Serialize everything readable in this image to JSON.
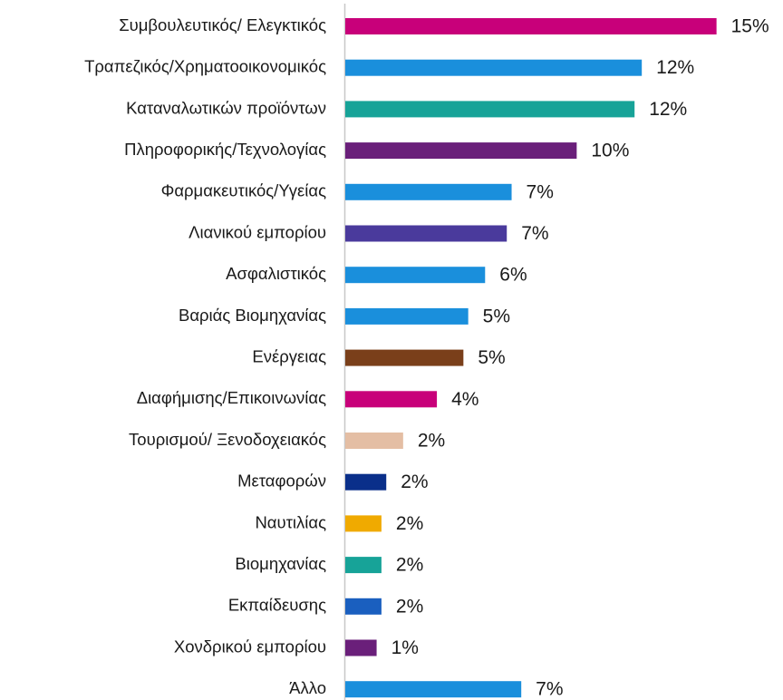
{
  "chart_data": {
    "type": "hbar",
    "categories": [
      "Συμβουλευτικός/ Ελεγκτικός",
      "Τραπεζικός/Χρηματοοικονομικός",
      "Καταναλωτικών προϊόντων",
      "Πληροφορικής/Τεχνολογίας",
      "Φαρμακευτικός/Υγείας",
      "Λιανικού εμπορίου",
      "Ασφαλιστικός",
      "Βαριάς Βιομηχανίας",
      "Ενέργειας",
      "Διαφήμισης/Επικοινωνίας",
      "Τουρισμού/ Ξενοδοχειακός",
      "Μεταφορών",
      "Ναυτιλίας",
      "Βιομηχανίας",
      "Εκπαίδευσης",
      "Χονδρικού εμπορίου",
      "Άλλο"
    ],
    "values": [
      15.4,
      12.3,
      12.0,
      9.6,
      6.9,
      6.7,
      5.8,
      5.1,
      4.9,
      3.8,
      2.4,
      1.7,
      1.5,
      1.5,
      1.5,
      1.3,
      7.3
    ],
    "value_labels": [
      "15%",
      "12%",
      "12%",
      "10%",
      "7%",
      "7%",
      "6%",
      "5%",
      "5%",
      "4%",
      "2%",
      "2%",
      "2%",
      "2%",
      "2%",
      "1%",
      "7%"
    ],
    "colors": [
      "#c8007a",
      "#1a8fdc",
      "#17a398",
      "#6a1f7a",
      "#1a8fdc",
      "#4a3a9c",
      "#1a8fdc",
      "#1a8fdc",
      "#7a3f1a",
      "#c8007a",
      "#e4bea4",
      "#0a2f8a",
      "#f0aa00",
      "#17a398",
      "#1a5fbf",
      "#6a1f7a",
      "#1a8fdc"
    ]
  }
}
